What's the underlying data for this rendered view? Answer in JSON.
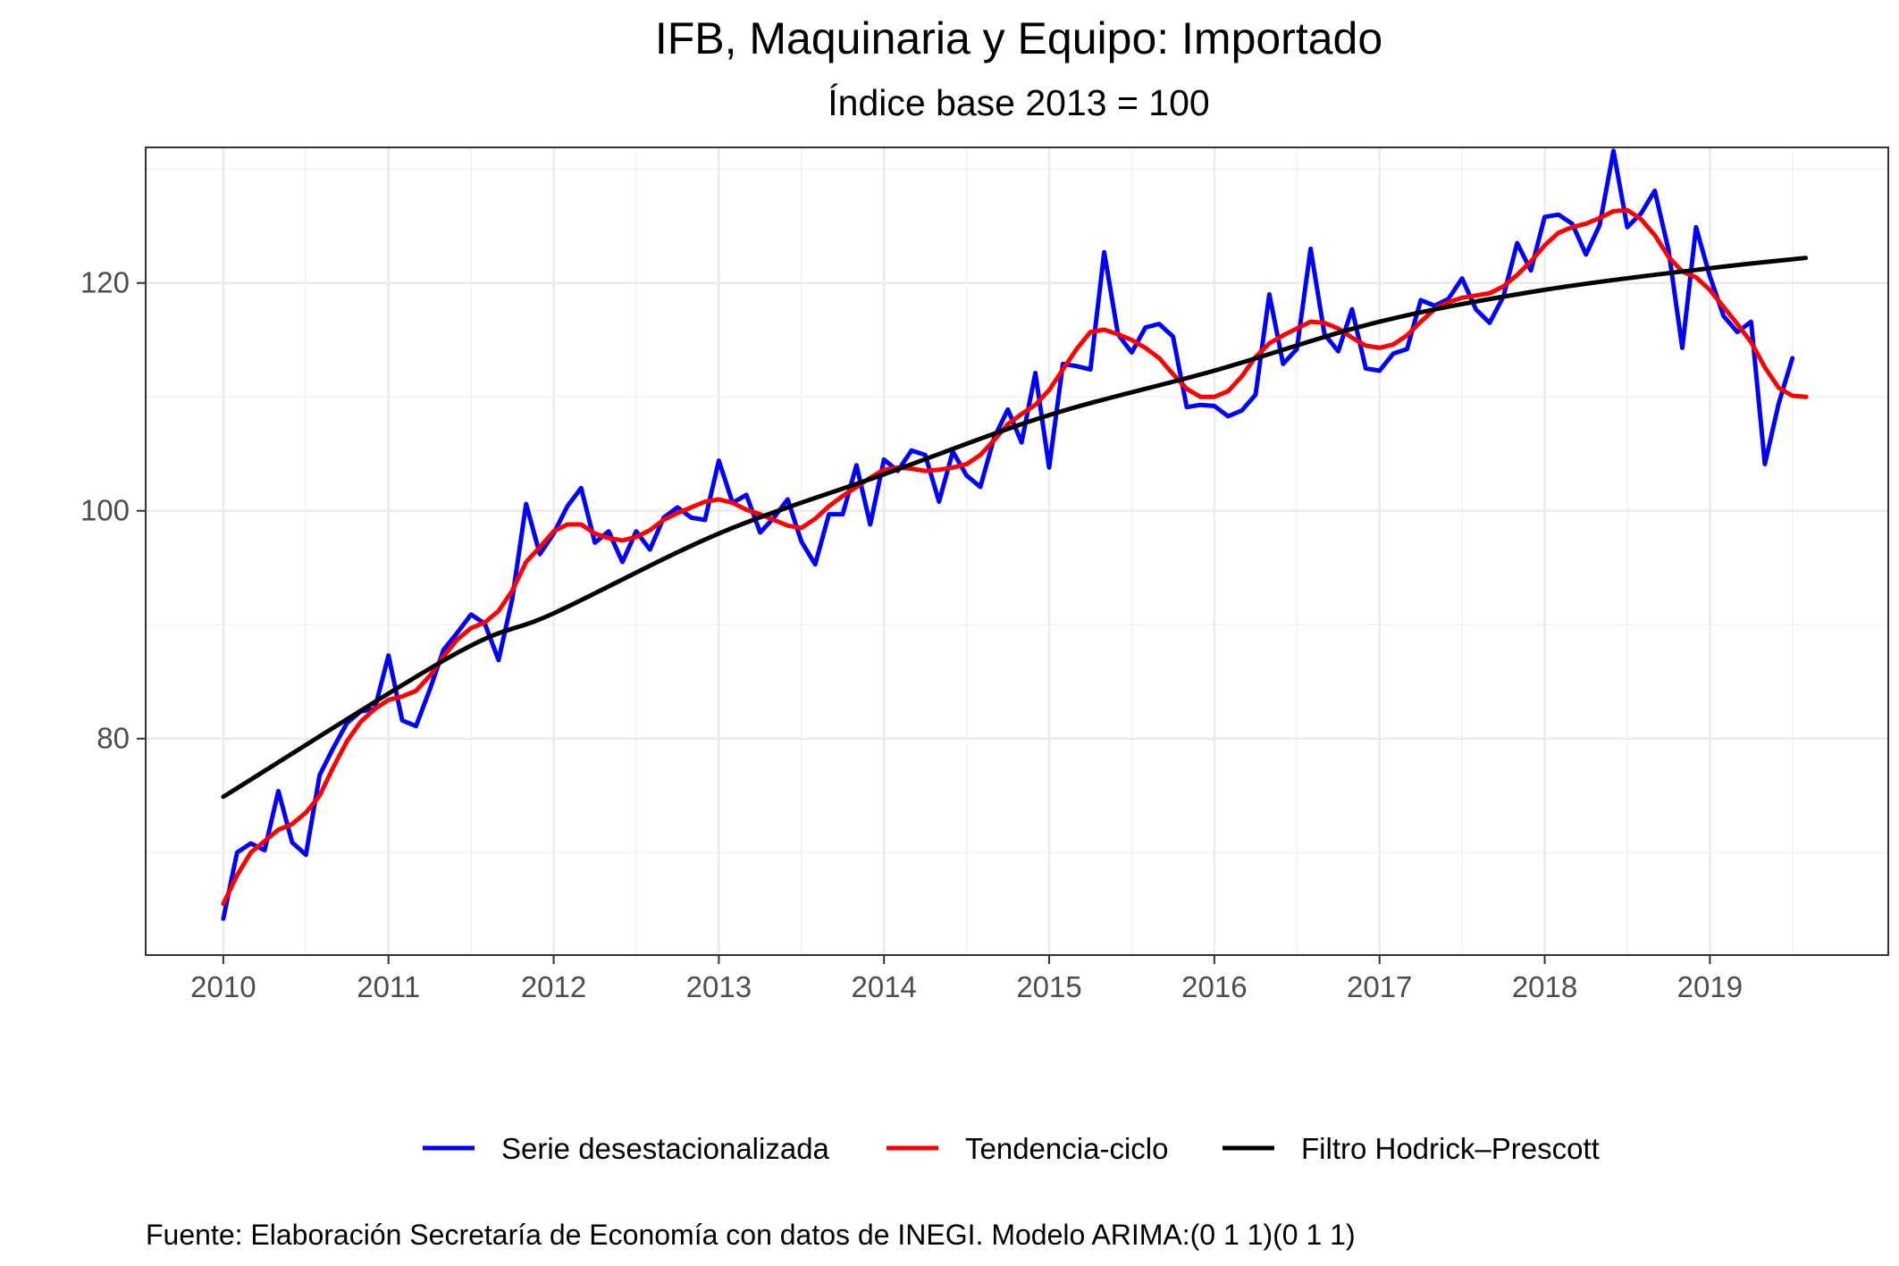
{
  "chart_data": {
    "type": "line",
    "title": "IFB, Maquinaria y Equipo: Importado",
    "subtitle": "Índice base 2013 = 100",
    "caption": "Fuente: Elaboración Secretaría de Economía con datos de INEGI. Modelo ARIMA:(0 1 1)(0 1 1)",
    "xlabel": "",
    "ylabel": "",
    "x_ticks": [
      "2010",
      "2011",
      "2012",
      "2013",
      "2014",
      "2015",
      "2016",
      "2017",
      "2018",
      "2019"
    ],
    "y_ticks": [
      80,
      100,
      120
    ],
    "xlim": [
      2009.53,
      2020.08
    ],
    "ylim": [
      61,
      131.9
    ],
    "grid": true,
    "legend_position": "bottom",
    "x_start": 2010.0,
    "x_step": 0.08333,
    "series": [
      {
        "name": "Serie desestacionalizada",
        "color": "#0000FF",
        "values": [
          64.2,
          70.0,
          70.8,
          70.2,
          75.4,
          70.9,
          69.8,
          76.8,
          79.2,
          81.4,
          82.4,
          82.6,
          87.3,
          81.6,
          81.1,
          84.3,
          87.8,
          89.3,
          90.9,
          90.1,
          86.9,
          92.3,
          100.6,
          96.2,
          98.0,
          100.4,
          102.0,
          97.2,
          98.2,
          95.5,
          98.2,
          96.6,
          99.4,
          100.3,
          99.4,
          99.2,
          104.4,
          100.7,
          101.4,
          98.1,
          99.4,
          101.0,
          97.3,
          95.3,
          99.7,
          99.7,
          104.0,
          98.8,
          104.5,
          103.5,
          105.3,
          104.9,
          100.8,
          105.2,
          103.1,
          102.1,
          106.4,
          108.9,
          106.0,
          112.1,
          103.8,
          112.9,
          112.7,
          112.4,
          122.7,
          115.5,
          113.9,
          116.1,
          116.4,
          115.3,
          109.1,
          109.3,
          109.2,
          108.3,
          108.8,
          110.2,
          119.0,
          112.9,
          114.2,
          123.0,
          115.5,
          114.0,
          117.7,
          112.5,
          112.3,
          113.8,
          114.2,
          118.5,
          118.0,
          118.6,
          120.4,
          117.7,
          116.5,
          118.8,
          123.5,
          121.1,
          125.8,
          126.0,
          125.2,
          122.5,
          125.1,
          131.6,
          124.9,
          126.1,
          128.1,
          122.9,
          114.3,
          124.9,
          120.6,
          117.1,
          115.7,
          116.6,
          104.1,
          109.4,
          113.4
        ]
      },
      {
        "name": "Tendencia-ciclo",
        "color": "#FF0000",
        "values": [
          65.5,
          68.0,
          70.0,
          71.0,
          72.0,
          72.5,
          73.5,
          75.0,
          77.5,
          79.8,
          81.5,
          82.6,
          83.4,
          83.7,
          84.2,
          85.5,
          87.2,
          88.7,
          89.7,
          90.2,
          91.2,
          93.0,
          95.5,
          96.8,
          98.2,
          98.8,
          98.8,
          98.0,
          97.6,
          97.4,
          97.7,
          98.3,
          99.2,
          99.8,
          100.3,
          100.8,
          101.0,
          100.7,
          100.1,
          99.7,
          99.2,
          98.7,
          98.5,
          99.3,
          100.4,
          101.3,
          102.1,
          102.9,
          103.6,
          103.8,
          103.7,
          103.5,
          103.6,
          103.8,
          104.1,
          104.9,
          106.2,
          107.6,
          108.5,
          109.3,
          110.6,
          112.4,
          114.2,
          115.7,
          115.9,
          115.5,
          115.0,
          114.3,
          113.4,
          112.0,
          110.7,
          110.0,
          110.0,
          110.5,
          111.8,
          113.5,
          114.7,
          115.4,
          116.0,
          116.6,
          116.5,
          116.0,
          115.2,
          114.5,
          114.3,
          114.6,
          115.4,
          116.6,
          117.7,
          118.3,
          118.7,
          118.9,
          119.1,
          119.7,
          120.7,
          121.9,
          123.3,
          124.4,
          124.9,
          125.2,
          125.7,
          126.3,
          126.4,
          125.6,
          124.2,
          122.3,
          121.0,
          120.5,
          119.4,
          117.9,
          116.4,
          114.8,
          112.6,
          110.8,
          110.1,
          110.0
        ]
      },
      {
        "name": "Filtro Hodrick–Prescott",
        "color": "#000000",
        "values": [
          74.9,
          87.4,
          91.0,
          98.0,
          103.2,
          108.4,
          112.3,
          116.6,
          119.4,
          121.3,
          122.2
        ]
      }
    ],
    "hp_x": [
      2010.0,
      2011.4,
      2012.0,
      2013.0,
      2014.0,
      2015.0,
      2016.0,
      2017.0,
      2018.0,
      2019.0,
      2019.58
    ]
  }
}
